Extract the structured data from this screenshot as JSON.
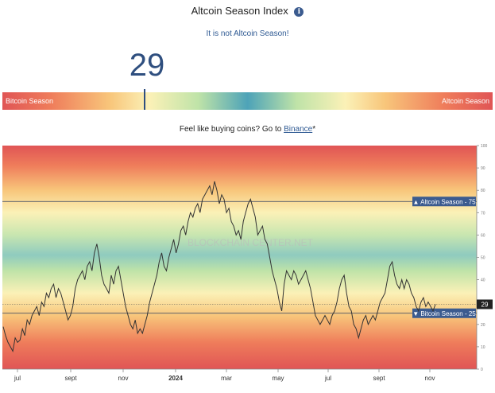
{
  "header": {
    "title": "Altcoin Season Index",
    "info_icon": "i",
    "status_text": "It is not Altcoin Season!"
  },
  "index_value": 29,
  "index_value_text": "29",
  "scale": {
    "left_label": "Bitcoin Season",
    "right_label": "Altcoin Season"
  },
  "promo": {
    "text": "Feel like buying coins? Go to ",
    "link_label": "Binance",
    "suffix": "*"
  },
  "watermark": "BLOCKCHAIN CENTER.NET",
  "colors": {
    "bitcoin": "#e05555",
    "altcoin": "#e05555",
    "accent": "#2f4f7f",
    "label_bg": "#3b5b8f"
  },
  "chart_data": {
    "type": "line",
    "x_ticks": [
      "jul",
      "sept",
      "nov",
      "2024",
      "mar",
      "may",
      "jul",
      "sept",
      "nov"
    ],
    "y_ticks": [
      0,
      10,
      20,
      30,
      40,
      50,
      60,
      70,
      80,
      90,
      100
    ],
    "ylim": [
      0,
      100
    ],
    "thresholds": [
      {
        "label": "▲ Altcoin Season - 75",
        "value": 75
      },
      {
        "label": "▼ Bitcoin Season - 25",
        "value": 25
      }
    ],
    "current_value_label": "29",
    "current_value": 29,
    "series": [
      {
        "values": [
          19,
          15,
          12,
          10,
          8,
          14,
          12,
          13,
          18,
          15,
          22,
          20,
          24,
          26,
          28,
          24,
          30,
          28,
          34,
          32,
          36,
          38,
          32,
          36,
          34,
          30,
          26,
          22,
          24,
          28,
          36,
          40,
          42,
          44,
          40,
          46,
          48,
          44,
          52,
          56,
          50,
          42,
          38,
          36,
          34,
          42,
          38,
          44,
          46,
          40,
          34,
          28,
          24,
          20,
          18,
          22,
          16,
          18,
          16,
          20,
          24,
          30,
          34,
          38,
          42,
          48,
          52,
          46,
          44,
          50,
          54,
          58,
          52,
          56,
          62,
          64,
          60,
          66,
          70,
          68,
          72,
          74,
          70,
          76,
          78,
          80,
          82,
          78,
          84,
          80,
          74,
          78,
          76,
          70,
          72,
          66,
          64,
          60,
          62,
          58,
          66,
          70,
          74,
          76,
          72,
          68,
          60,
          62,
          64,
          58,
          56,
          50,
          44,
          40,
          36,
          30,
          26,
          38,
          44,
          42,
          40,
          44,
          42,
          38,
          40,
          42,
          44,
          40,
          36,
          30,
          24,
          22,
          20,
          22,
          24,
          22,
          20,
          24,
          26,
          30,
          36,
          40,
          42,
          34,
          28,
          26,
          20,
          18,
          14,
          18,
          22,
          24,
          20,
          22,
          24,
          22,
          26,
          30,
          32,
          34,
          40,
          46,
          48,
          42,
          38,
          36,
          40,
          36,
          40,
          38,
          34,
          32,
          28,
          26,
          30,
          32,
          28,
          30,
          28,
          26,
          29
        ]
      }
    ]
  }
}
